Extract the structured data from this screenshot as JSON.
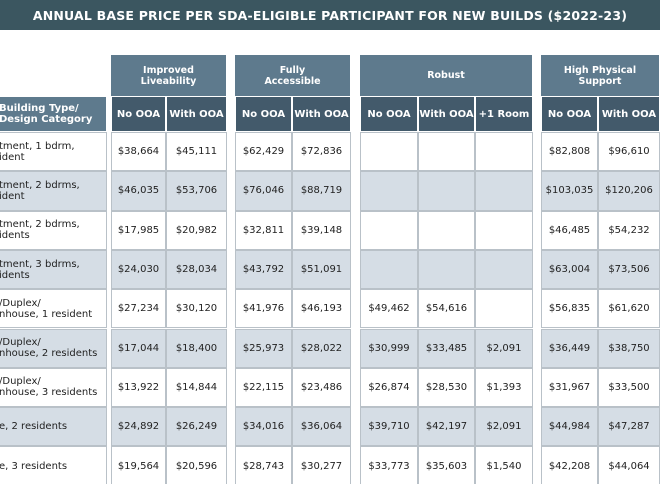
{
  "title": "ANNUAL BASE PRICE PER SDA-ELIGIBLE PARTICIPANT FOR NEW BUILDS ($2022-23)",
  "table": {
    "row_header": [
      "Building Type/",
      "Design Category"
    ],
    "groups": [
      {
        "label": [
          "Improved",
          "Liveability"
        ],
        "columns": [
          "No OOA",
          "With OOA"
        ]
      },
      {
        "label": [
          "Fully",
          "Accessible"
        ],
        "columns": [
          "No OOA",
          "With OOA"
        ]
      },
      {
        "label": [
          "Robust"
        ],
        "columns": [
          "No OOA",
          "With OOA",
          "+1 Room"
        ]
      },
      {
        "label": [
          "High Physical",
          "Support"
        ],
        "columns": [
          "No OOA",
          "With OOA"
        ]
      }
    ],
    "rows": [
      {
        "label": [
          "tment, 1 bdrm,",
          "ident"
        ],
        "cells": [
          "$38,664",
          "$45,111",
          "$62,429",
          "$72,836",
          null,
          null,
          null,
          "$82,808",
          "$96,610"
        ]
      },
      {
        "label": [
          "tment, 2 bdrms,",
          "ident"
        ],
        "cells": [
          "$46,035",
          "$53,706",
          "$76,046",
          "$88,719",
          null,
          null,
          null,
          "$103,035",
          "$120,206"
        ]
      },
      {
        "label": [
          "tment, 2 bdrms,",
          "idents"
        ],
        "cells": [
          "$17,985",
          "$20,982",
          "$32,811",
          "$39,148",
          null,
          null,
          null,
          "$46,485",
          "$54,232"
        ]
      },
      {
        "label": [
          "tment, 3 bdrms,",
          "idents"
        ],
        "cells": [
          "$24,030",
          "$28,034",
          "$43,792",
          "$51,091",
          null,
          null,
          null,
          "$63,004",
          "$73,506"
        ]
      },
      {
        "label": [
          "/Duplex/",
          "nhouse, 1 resident"
        ],
        "cells": [
          "$27,234",
          "$30,120",
          "$41,976",
          "$46,193",
          "$49,462",
          "$54,616",
          null,
          "$56,835",
          "$61,620"
        ]
      },
      {
        "label": [
          "/Duplex/",
          "nhouse, 2 residents"
        ],
        "cells": [
          "$17,044",
          "$18,400",
          "$25,973",
          "$28,022",
          "$30,999",
          "$33,485",
          "$2,091",
          "$36,449",
          "$38,750"
        ]
      },
      {
        "label": [
          "/Duplex/",
          "nhouse, 3 residents"
        ],
        "cells": [
          "$13,922",
          "$14,844",
          "$22,115",
          "$23,486",
          "$26,874",
          "$28,530",
          "$1,393",
          "$31,967",
          "$33,500"
        ]
      },
      {
        "label": [
          "e, 2 residents"
        ],
        "cells": [
          "$24,892",
          "$26,249",
          "$34,016",
          "$36,064",
          "$39,710",
          "$42,197",
          "$2,091",
          "$44,984",
          "$47,287"
        ]
      },
      {
        "label": [
          "e, 3 residents"
        ],
        "cells": [
          "$19,564",
          "$20,596",
          "$28,743",
          "$30,277",
          "$33,773",
          "$35,603",
          "$1,540",
          "$42,208",
          "$44,064"
        ]
      }
    ]
  }
}
